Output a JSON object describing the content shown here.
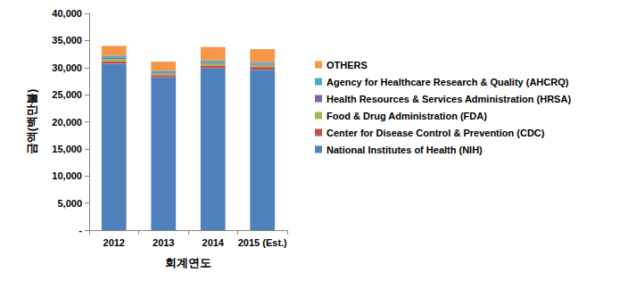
{
  "chart_data": {
    "type": "bar",
    "stacked": true,
    "x_label": "회계연도",
    "y_label": "금액(백만불)",
    "categories": [
      "2012",
      "2013",
      "2014",
      "2015 (Est.)"
    ],
    "series": [
      {
        "name": "National Institutes of Health (NIH)",
        "color": "#4f81bd",
        "values": [
          30700,
          28200,
          29900,
          29600
        ]
      },
      {
        "name": "Center for Disease Control & Prevention (CDC)",
        "color": "#c0504d",
        "values": [
          500,
          400,
          500,
          500
        ]
      },
      {
        "name": "Food & Drug Administration (FDA)",
        "color": "#9bbb59",
        "values": [
          400,
          300,
          400,
          400
        ]
      },
      {
        "name": "Health Resources & Services Administration (HRSA)",
        "color": "#8064a2",
        "values": [
          200,
          200,
          200,
          200
        ]
      },
      {
        "name": "Agency for Healthcare Research & Quality (AHCRQ)",
        "color": "#4bacc6",
        "values": [
          400,
          300,
          300,
          300
        ]
      },
      {
        "name": "OTHERS",
        "color": "#f79646",
        "values": [
          1800,
          1700,
          2500,
          2400
        ]
      }
    ],
    "ylim": [
      0,
      40000
    ],
    "yticks": [
      {
        "value": 0,
        "label": "-"
      },
      {
        "value": 5000,
        "label": "5,000"
      },
      {
        "value": 10000,
        "label": "10,000"
      },
      {
        "value": 15000,
        "label": "15,000"
      },
      {
        "value": 20000,
        "label": "20,000"
      },
      {
        "value": 25000,
        "label": "25,000"
      },
      {
        "value": 30000,
        "label": "30,000"
      },
      {
        "value": 35000,
        "label": "35,000"
      },
      {
        "value": 40000,
        "label": "40,000"
      }
    ],
    "grid": false,
    "legend": "right"
  }
}
